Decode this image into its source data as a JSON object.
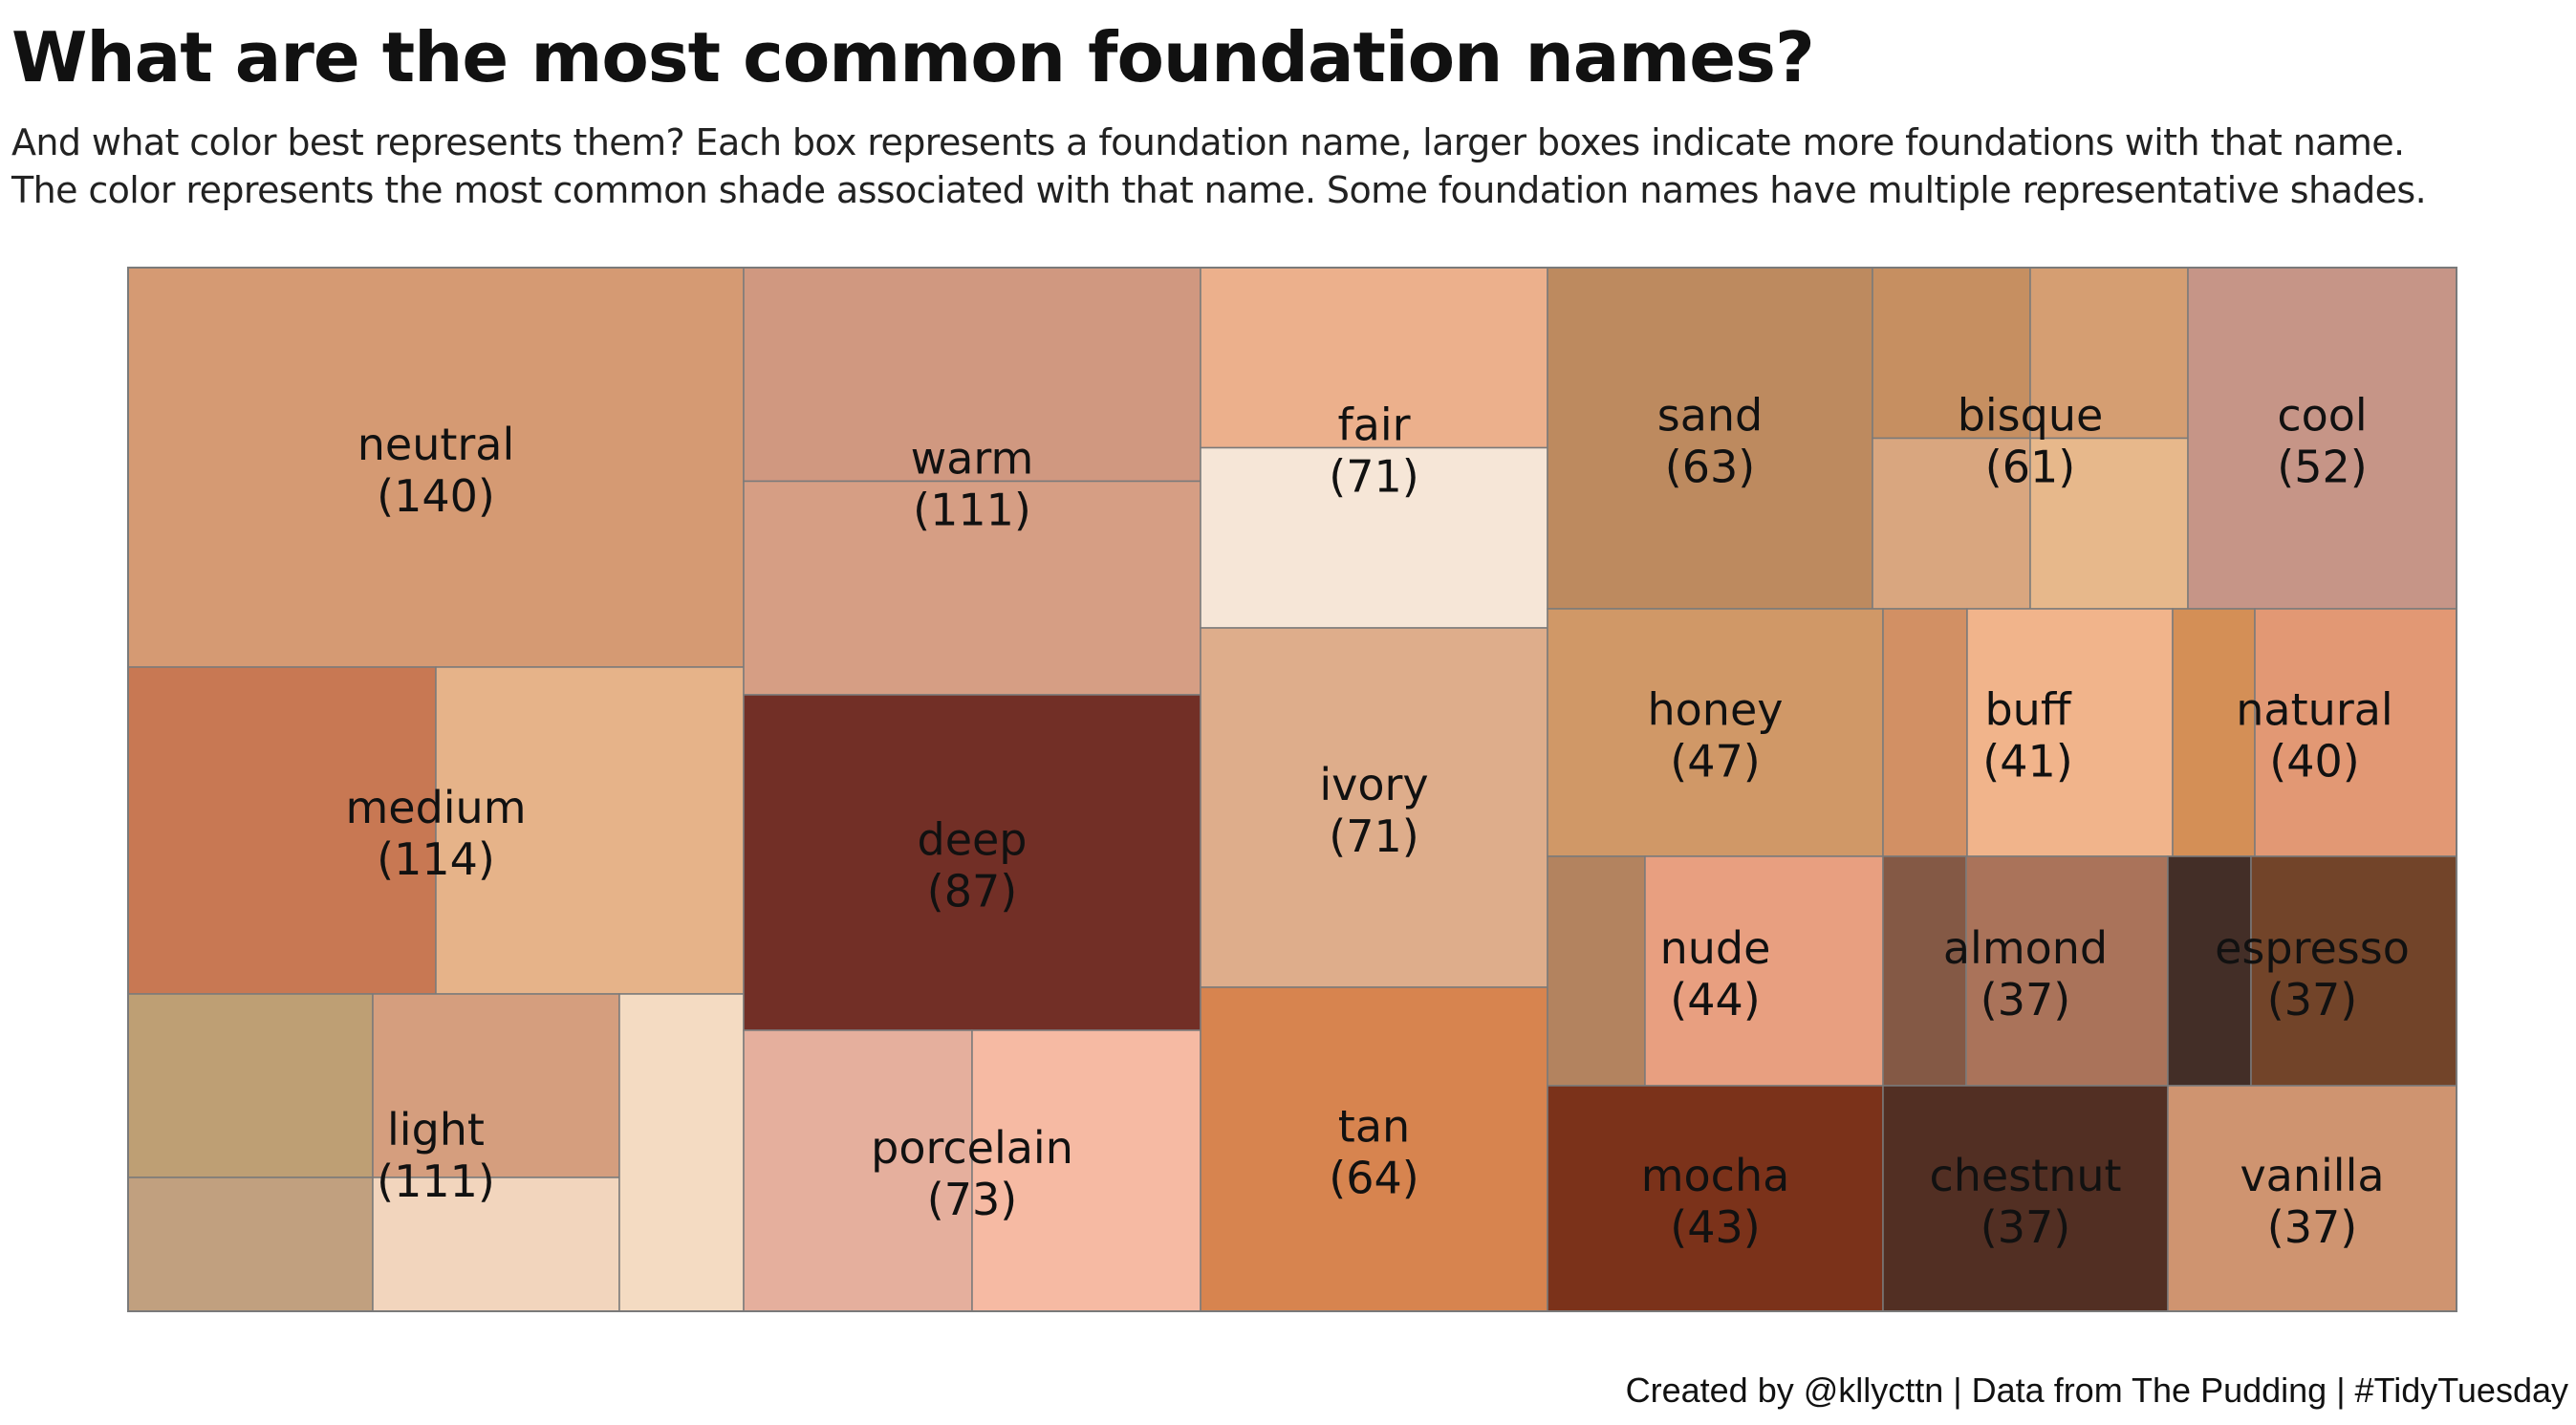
{
  "title": "What are the most common foundation names?",
  "subtitle_line1": "And what color best represents them? Each box represents a foundation name, larger boxes indicate more foundations with that name.",
  "subtitle_line2": "The color represents the most common shade associated with that name. Some foundation names have multiple representative shades.",
  "caption": "Created by @kllycttn | Data from The Pudding | #TidyTuesday",
  "chart_data": {
    "type": "treemap",
    "value_label": "number of foundations",
    "items": [
      {
        "name": "neutral",
        "count": 140,
        "shades": [
          "#D59A73"
        ]
      },
      {
        "name": "medium",
        "count": 114,
        "shades": [
          "#C87853",
          "#E6B389"
        ]
      },
      {
        "name": "light",
        "count": 111,
        "shades": [
          "#BE9F74",
          "#D59E7E",
          "#C1A07F",
          "#F2D5BD",
          "#F4DBC2"
        ]
      },
      {
        "name": "warm",
        "count": 111,
        "shades": [
          "#D09880",
          "#D69E84"
        ]
      },
      {
        "name": "deep",
        "count": 87,
        "shades": [
          "#722F26"
        ]
      },
      {
        "name": "porcelain",
        "count": 73,
        "shades": [
          "#E5AF9D",
          "#F6BAA3"
        ]
      },
      {
        "name": "fair",
        "count": 71,
        "shades": [
          "#ECB08C",
          "#F6E6D7"
        ]
      },
      {
        "name": "ivory",
        "count": 71,
        "shades": [
          "#DEAD8B"
        ]
      },
      {
        "name": "tan",
        "count": 64,
        "shades": [
          "#D7844F"
        ]
      },
      {
        "name": "sand",
        "count": 63,
        "shades": [
          "#BD8A5F"
        ]
      },
      {
        "name": "bisque",
        "count": 61,
        "shades": [
          "#C68F61",
          "#D59E72",
          "#D9A67F",
          "#E7B88B"
        ]
      },
      {
        "name": "cool",
        "count": 52,
        "shades": [
          "#C69587"
        ]
      },
      {
        "name": "honey",
        "count": 47,
        "shades": [
          "#D09867"
        ]
      },
      {
        "name": "buff",
        "count": 41,
        "shades": [
          "#D29064",
          "#F1B48B"
        ]
      },
      {
        "name": "natural",
        "count": 40,
        "shades": [
          "#D48F56",
          "#E29874"
        ]
      },
      {
        "name": "nude",
        "count": 44,
        "shades": [
          "#B3835F",
          "#E89F80"
        ]
      },
      {
        "name": "almond",
        "count": 37,
        "shades": [
          "#845945",
          "#AA735A"
        ]
      },
      {
        "name": "espresso",
        "count": 37,
        "shades": [
          "#432E27",
          "#724429"
        ]
      },
      {
        "name": "mocha",
        "count": 43,
        "shades": [
          "#7B321A"
        ]
      },
      {
        "name": "chestnut",
        "count": 37,
        "shades": [
          "#522F23"
        ]
      },
      {
        "name": "vanilla",
        "count": 37,
        "shades": [
          "#CF9470"
        ]
      }
    ]
  }
}
